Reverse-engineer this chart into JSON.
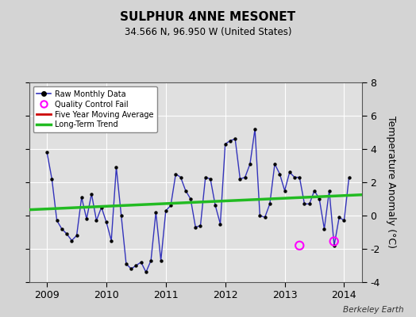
{
  "title": "SULPHUR 4NNE MESONET",
  "subtitle": "34.566 N, 96.950 W (United States)",
  "ylabel": "Temperature Anomaly (°C)",
  "attribution": "Berkeley Earth",
  "ylim": [
    -4,
    8
  ],
  "yticks": [
    -4,
    -2,
    0,
    2,
    4,
    6,
    8
  ],
  "xlim": [
    2008.7,
    2014.3
  ],
  "xtick_labels": [
    "2009",
    "2010",
    "2011",
    "2012",
    "2013",
    "2014"
  ],
  "xtick_positions": [
    2009,
    2010,
    2011,
    2012,
    2013,
    2014
  ],
  "bg_color": "#d4d4d4",
  "plot_bg_color": "#e0e0e0",
  "grid_color": "#ffffff",
  "raw_color": "#3333bb",
  "raw_marker_color": "#000000",
  "trend_color": "#22bb22",
  "mavg_color": "#cc0000",
  "qc_color": "#ff00ff",
  "raw_data_x": [
    2009.0,
    2009.083,
    2009.167,
    2009.25,
    2009.333,
    2009.417,
    2009.5,
    2009.583,
    2009.667,
    2009.75,
    2009.833,
    2009.917,
    2010.0,
    2010.083,
    2010.167,
    2010.25,
    2010.333,
    2010.417,
    2010.5,
    2010.583,
    2010.667,
    2010.75,
    2010.833,
    2010.917,
    2011.0,
    2011.083,
    2011.167,
    2011.25,
    2011.333,
    2011.417,
    2011.5,
    2011.583,
    2011.667,
    2011.75,
    2011.833,
    2011.917,
    2012.0,
    2012.083,
    2012.167,
    2012.25,
    2012.333,
    2012.417,
    2012.5,
    2012.583,
    2012.667,
    2012.75,
    2012.833,
    2012.917,
    2013.0,
    2013.083,
    2013.167,
    2013.25,
    2013.333,
    2013.417,
    2013.5,
    2013.583,
    2013.667,
    2013.75,
    2013.833,
    2013.917,
    2014.0,
    2014.083
  ],
  "raw_data_y": [
    3.8,
    2.2,
    -0.3,
    -0.8,
    -1.1,
    -1.5,
    -1.2,
    1.1,
    -0.2,
    1.3,
    -0.3,
    0.5,
    -0.4,
    -1.5,
    2.9,
    0.0,
    -2.9,
    -3.2,
    -3.0,
    -2.8,
    -3.4,
    -2.7,
    0.2,
    -2.7,
    0.3,
    0.6,
    2.5,
    2.3,
    1.5,
    1.0,
    -0.7,
    -0.6,
    2.3,
    2.2,
    0.6,
    -0.5,
    4.3,
    4.5,
    4.6,
    2.2,
    2.3,
    3.1,
    5.2,
    0.0,
    -0.1,
    0.7,
    3.1,
    2.5,
    1.5,
    2.6,
    2.3,
    2.3,
    0.7,
    0.7,
    1.5,
    1.0,
    -0.8,
    1.5,
    -1.8,
    -0.1,
    -0.3,
    2.3
  ],
  "trend_x": [
    2008.7,
    2014.3
  ],
  "trend_y": [
    0.35,
    1.25
  ],
  "qc_points_x": [
    2013.25,
    2013.83
  ],
  "qc_points_y": [
    -1.8,
    -1.55
  ]
}
